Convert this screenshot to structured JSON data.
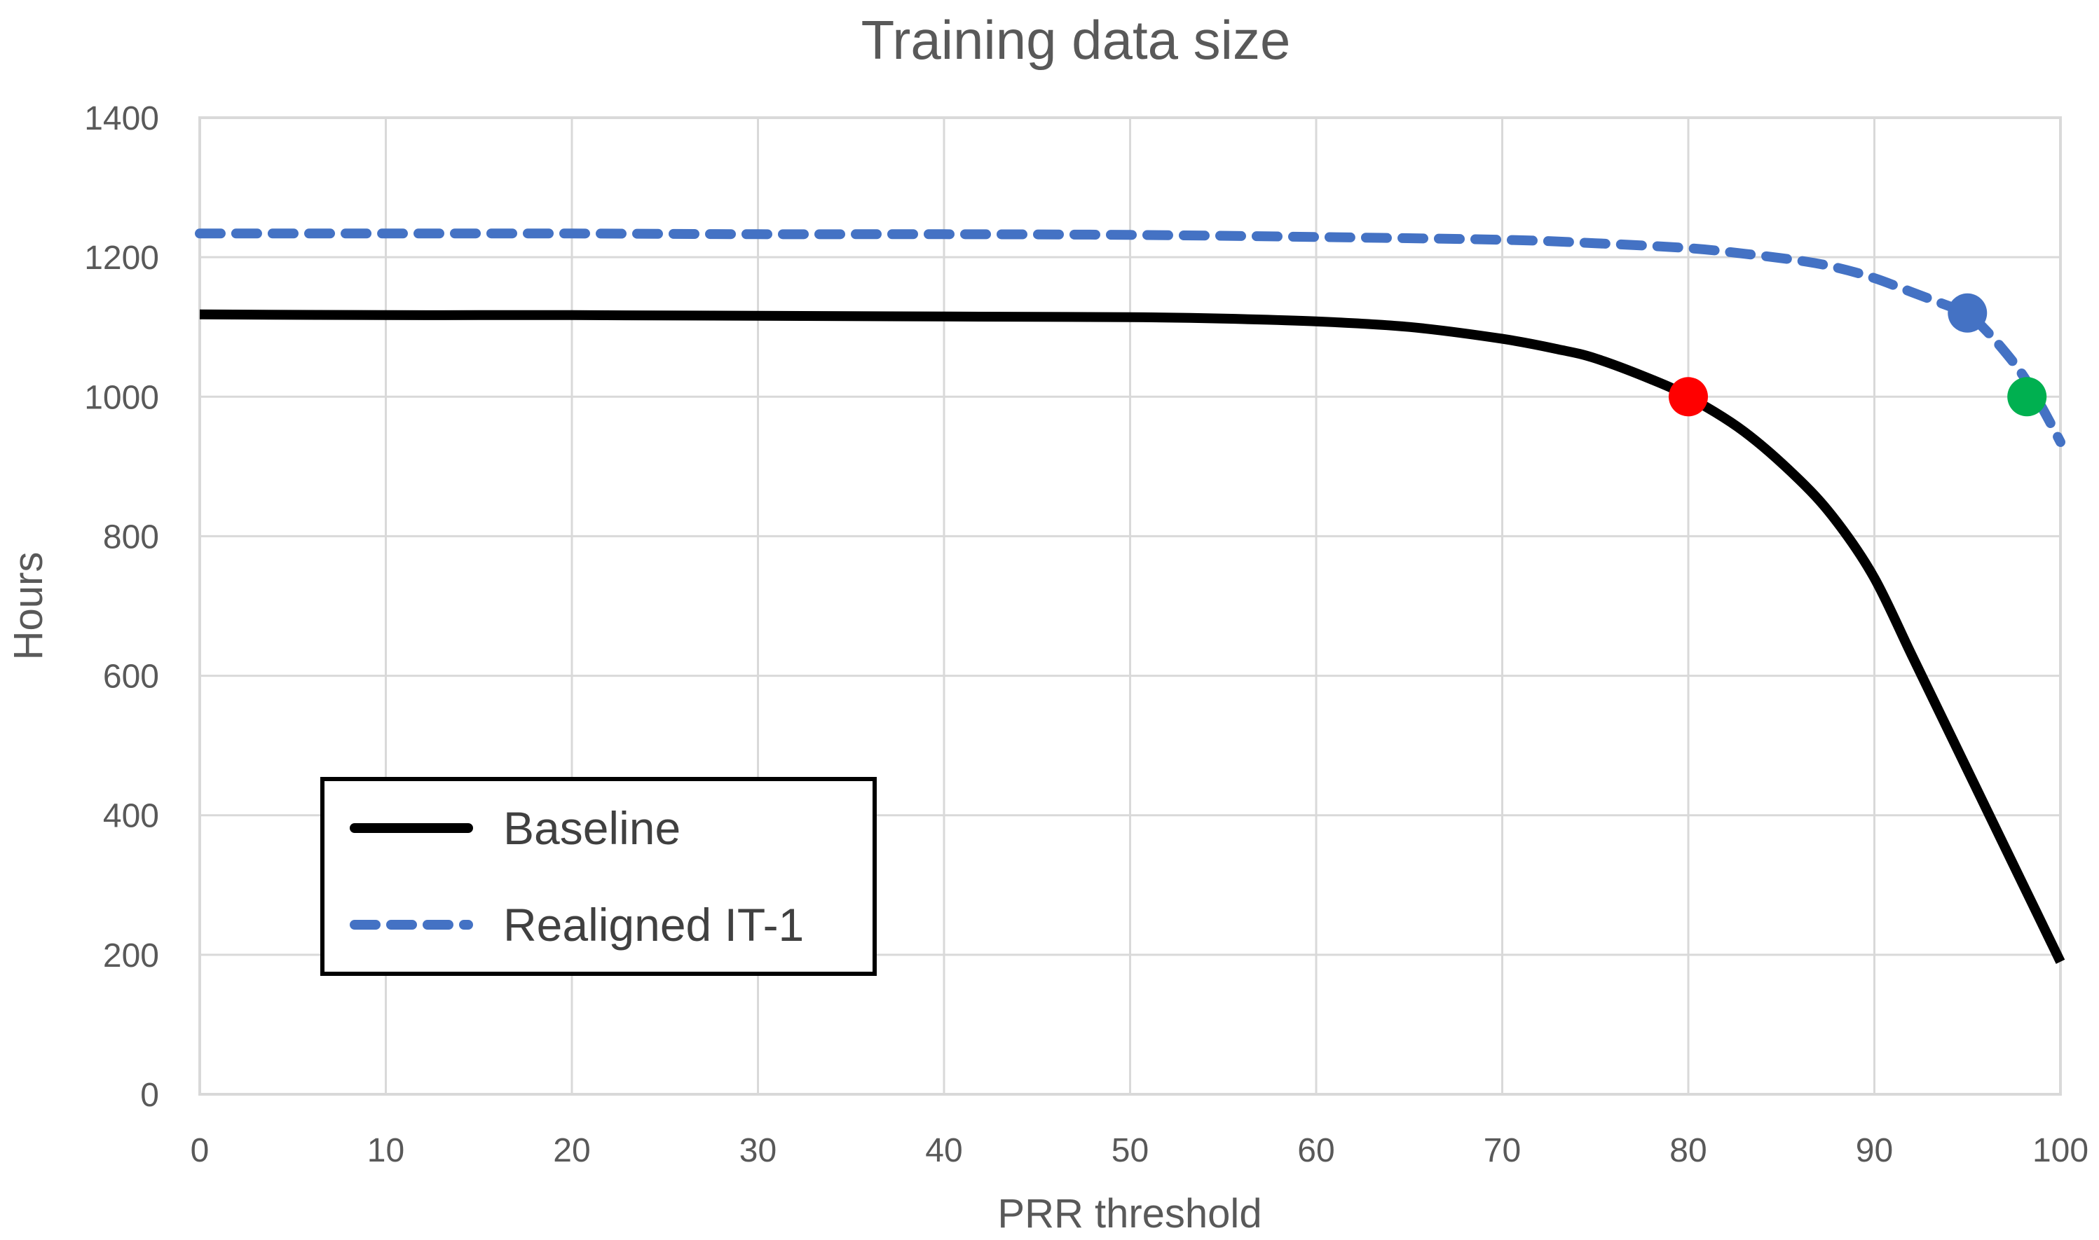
{
  "chart_data": {
    "type": "line",
    "title": "Training data size",
    "xlabel": "PRR threshold",
    "ylabel": "Hours",
    "xlim": [
      0,
      100
    ],
    "ylim": [
      0,
      1400
    ],
    "xticks": [
      0,
      10,
      20,
      30,
      40,
      50,
      60,
      70,
      80,
      90,
      100
    ],
    "yticks": [
      0,
      200,
      400,
      600,
      800,
      1000,
      1200,
      1400
    ],
    "grid": true,
    "legend_position": "lower-left",
    "series": [
      {
        "name": "Baseline",
        "color": "#000000",
        "style": "solid",
        "x": [
          0,
          10,
          20,
          30,
          40,
          50,
          55,
          60,
          65,
          70,
          73,
          75,
          78,
          80,
          83,
          86,
          88,
          90,
          92,
          94,
          96,
          98,
          100
        ],
        "y": [
          1118,
          1117,
          1117,
          1116,
          1115,
          1114,
          1112,
          1108,
          1100,
          1083,
          1068,
          1055,
          1025,
          1000,
          950,
          880,
          820,
          740,
          630,
          520,
          410,
          300,
          190
        ]
      },
      {
        "name": "Realigned IT-1",
        "color": "#4472C4",
        "style": "dashed",
        "x": [
          0,
          10,
          20,
          30,
          40,
          50,
          60,
          70,
          75,
          80,
          83,
          86,
          88,
          90,
          92,
          94,
          95,
          96,
          97,
          98,
          99,
          100
        ],
        "y": [
          1234,
          1234,
          1234,
          1233,
          1233,
          1232,
          1229,
          1225,
          1220,
          1213,
          1205,
          1195,
          1185,
          1170,
          1150,
          1130,
          1120,
          1095,
          1065,
          1030,
          985,
          935
        ]
      }
    ],
    "markers": [
      {
        "name": "baseline-1000h",
        "x": 80,
        "y": 1000,
        "color": "#FF0000"
      },
      {
        "name": "realigned-1120h",
        "x": 95,
        "y": 1120,
        "color": "#4472C4"
      },
      {
        "name": "realigned-1000h",
        "x": 98.2,
        "y": 1000,
        "color": "#00B050"
      }
    ]
  }
}
